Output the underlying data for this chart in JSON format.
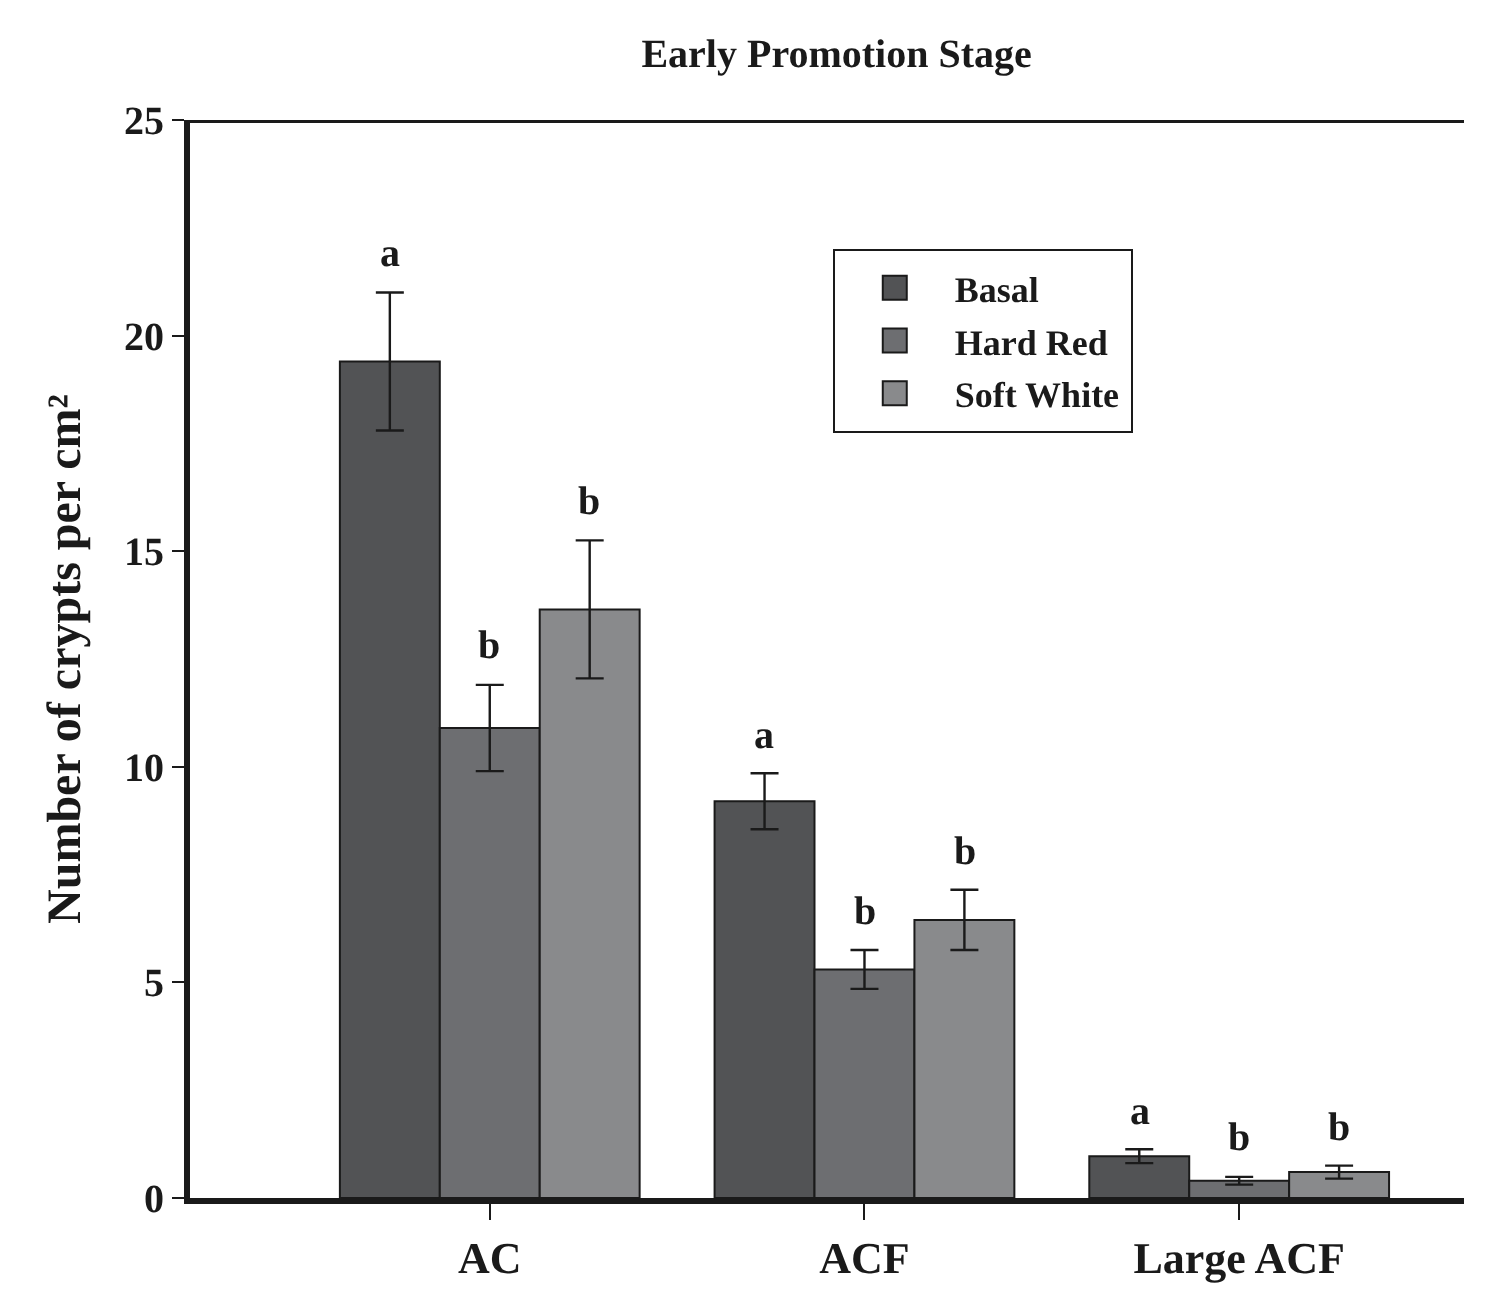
{
  "chart_data": {
    "type": "bar",
    "title": "Early Promotion Stage",
    "ylabel": "Number of crypts per cm²",
    "categories": [
      "AC",
      "ACF",
      "Large ACF"
    ],
    "series": [
      {
        "name": "Basal",
        "color": "#525355",
        "values": [
          19.4,
          9.2,
          0.97
        ],
        "errors": [
          1.6,
          0.65,
          0.16
        ]
      },
      {
        "name": "Hard Red",
        "color": "#6d6e71",
        "values": [
          10.9,
          5.3,
          0.4
        ],
        "errors": [
          1.0,
          0.45,
          0.09
        ]
      },
      {
        "name": "Soft White",
        "color": "#898a8c",
        "values": [
          13.65,
          6.45,
          0.6
        ],
        "errors": [
          1.6,
          0.7,
          0.15
        ]
      }
    ],
    "ylim": [
      0,
      25
    ],
    "yticks": [
      0,
      5,
      10,
      15,
      20,
      25
    ],
    "legend": "top right",
    "annotations": [
      "a",
      "b",
      "b",
      "a",
      "b",
      "b",
      "a",
      "b",
      "b"
    ]
  }
}
